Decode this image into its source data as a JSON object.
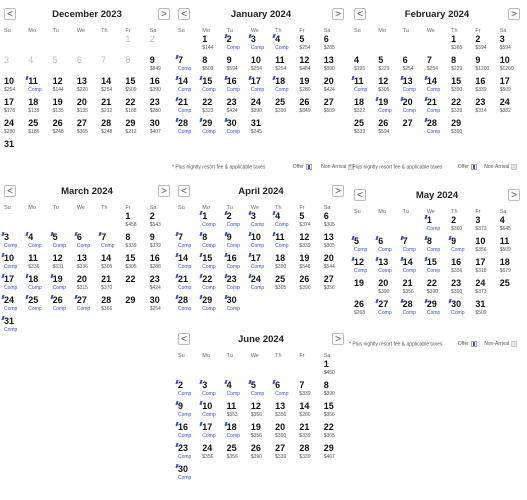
{
  "nav": {
    "prev": "<",
    "next": ">"
  },
  "weekdays": [
    "Su",
    "Mo",
    "Tu",
    "We",
    "Th",
    "Fr",
    "Sa"
  ],
  "legend": {
    "note": "* Plus nightly resort fee & applicable taxes",
    "offer": "Offer",
    "non_arrival": "Non-Arrival"
  },
  "colors": {
    "comp": "#3450d8",
    "disabled": "#bbbbbb"
  },
  "months": [
    {
      "title": "December 2023",
      "offset": 5,
      "days": [
        {
          "n": "1",
          "s": "",
          "dis": true
        },
        {
          "n": "2",
          "s": "",
          "dis": true
        },
        {
          "n": "3",
          "s": "",
          "dis": true
        },
        {
          "n": "4",
          "s": "",
          "dis": true
        },
        {
          "n": "5",
          "s": "",
          "dis": true
        },
        {
          "n": "6",
          "s": "",
          "dis": true
        },
        {
          "n": "7",
          "s": "",
          "dis": true
        },
        {
          "n": "8",
          "s": "",
          "dis": true
        },
        {
          "n": "9",
          "s": "$849"
        },
        {
          "n": "10",
          "s": "$254"
        },
        {
          "n": "11",
          "s": "Comp",
          "c": true
        },
        {
          "n": "12",
          "s": "$144"
        },
        {
          "n": "13",
          "s": "$220"
        },
        {
          "n": "14",
          "s": "$254"
        },
        {
          "n": "15",
          "s": "$509"
        },
        {
          "n": "16",
          "s": "$390"
        },
        {
          "n": "17",
          "s": "$178"
        },
        {
          "n": "18",
          "s": "$135"
        },
        {
          "n": "19",
          "s": "$135"
        },
        {
          "n": "20",
          "s": "$135"
        },
        {
          "n": "21",
          "s": "$212"
        },
        {
          "n": "22",
          "s": "$188"
        },
        {
          "n": "23",
          "s": "$280"
        },
        {
          "n": "24",
          "s": "$280"
        },
        {
          "n": "25",
          "s": "$186"
        },
        {
          "n": "26",
          "s": "$248"
        },
        {
          "n": "27",
          "s": "$365"
        },
        {
          "n": "28",
          "s": "$248"
        },
        {
          "n": "29",
          "s": "$212"
        },
        {
          "n": "30",
          "s": "$407"
        },
        {
          "n": "31",
          "s": ""
        }
      ]
    },
    {
      "title": "January 2024",
      "offset": 1,
      "days": [
        {
          "n": "1",
          "s": "$144"
        },
        {
          "n": "2",
          "s": "Comp",
          "c": true
        },
        {
          "n": "3",
          "s": "Comp",
          "c": true
        },
        {
          "n": "4",
          "s": "Comp",
          "c": true
        },
        {
          "n": "5",
          "s": "$254"
        },
        {
          "n": "6",
          "s": "$285"
        },
        {
          "n": "7",
          "s": "Comp",
          "c": true
        },
        {
          "n": "8",
          "s": "$509"
        },
        {
          "n": "9",
          "s": "$594"
        },
        {
          "n": "10",
          "s": "$254"
        },
        {
          "n": "11",
          "s": "$254"
        },
        {
          "n": "12",
          "s": "$484"
        },
        {
          "n": "13",
          "s": "$390"
        },
        {
          "n": "14",
          "s": "Comp",
          "c": true
        },
        {
          "n": "15",
          "s": "Comp",
          "c": true
        },
        {
          "n": "16",
          "s": "Comp",
          "c": true
        },
        {
          "n": "17",
          "s": "Comp",
          "c": true
        },
        {
          "n": "18",
          "s": "Comp",
          "c": true
        },
        {
          "n": "19",
          "s": "$280"
        },
        {
          "n": "20",
          "s": "$424"
        },
        {
          "n": "21",
          "s": "Comp",
          "c": true
        },
        {
          "n": "22",
          "s": "$323"
        },
        {
          "n": "23",
          "s": "$424"
        },
        {
          "n": "24",
          "s": "$390"
        },
        {
          "n": "25",
          "s": "$390"
        },
        {
          "n": "26",
          "s": "$849"
        },
        {
          "n": "27",
          "s": "$509"
        },
        {
          "n": "28",
          "s": "Comp",
          "c": true
        },
        {
          "n": "29",
          "s": "Comp",
          "c": true
        },
        {
          "n": "30",
          "s": "Comp",
          "c": true
        },
        {
          "n": "31",
          "s": "$245"
        }
      ]
    },
    {
      "title": "February 2024",
      "offset": 4,
      "days": [
        {
          "n": "1",
          "s": "$365"
        },
        {
          "n": "2",
          "s": "$594"
        },
        {
          "n": "3",
          "s": "$594"
        },
        {
          "n": "4",
          "s": "$195"
        },
        {
          "n": "5",
          "s": "$229"
        },
        {
          "n": "6",
          "s": "$254"
        },
        {
          "n": "7",
          "s": "$254"
        },
        {
          "n": "8",
          "s": "$229"
        },
        {
          "n": "9",
          "s": "$1200"
        },
        {
          "n": "10",
          "s": "$1200"
        },
        {
          "n": "11",
          "s": "Comp",
          "c": true
        },
        {
          "n": "12",
          "s": "$305"
        },
        {
          "n": "13",
          "s": "Comp",
          "c": true
        },
        {
          "n": "14",
          "s": "Comp",
          "c": true
        },
        {
          "n": "15",
          "s": "$390"
        },
        {
          "n": "16",
          "s": "$339"
        },
        {
          "n": "17",
          "s": "$509"
        },
        {
          "n": "18",
          "s": "$322"
        },
        {
          "n": "19",
          "s": "Comp",
          "c": true
        },
        {
          "n": "20",
          "s": "Comp",
          "c": true
        },
        {
          "n": "21",
          "s": "Comp",
          "c": true
        },
        {
          "n": "22",
          "s": "$339"
        },
        {
          "n": "23",
          "s": "$314"
        },
        {
          "n": "24",
          "s": "$382"
        },
        {
          "n": "25",
          "s": "$339"
        },
        {
          "n": "26",
          "s": "$594"
        },
        {
          "n": "27",
          "s": ""
        },
        {
          "n": "28",
          "s": "Comp",
          "c": true
        },
        {
          "n": "29",
          "s": "$390"
        }
      ]
    },
    {
      "title": "March 2024",
      "offset": 5,
      "days": [
        {
          "n": "1",
          "s": "$458"
        },
        {
          "n": "2",
          "s": "$543"
        },
        {
          "n": "3",
          "s": "Comp",
          "c": true
        },
        {
          "n": "4",
          "s": "Comp",
          "c": true
        },
        {
          "n": "5",
          "s": "Comp",
          "c": true
        },
        {
          "n": "6",
          "s": "Comp",
          "c": true
        },
        {
          "n": "7",
          "s": "Comp",
          "c": true
        },
        {
          "n": "8",
          "s": "$339"
        },
        {
          "n": "9",
          "s": "$339"
        },
        {
          "n": "10",
          "s": "Comp",
          "c": true
        },
        {
          "n": "11",
          "s": "$336"
        },
        {
          "n": "12",
          "s": "$331"
        },
        {
          "n": "13",
          "s": "$336"
        },
        {
          "n": "14",
          "s": "$305"
        },
        {
          "n": "15",
          "s": "$305"
        },
        {
          "n": "16",
          "s": "$288"
        },
        {
          "n": "17",
          "s": "Comp",
          "c": true
        },
        {
          "n": "18",
          "s": "Comp",
          "c": true
        },
        {
          "n": "19",
          "s": "Comp",
          "c": true
        },
        {
          "n": "20",
          "s": "$315"
        },
        {
          "n": "21",
          "s": "$370"
        },
        {
          "n": "22",
          "s": ""
        },
        {
          "n": "23",
          "s": "$424"
        },
        {
          "n": "24",
          "s": "Comp",
          "c": true
        },
        {
          "n": "25",
          "s": "Comp",
          "c": true
        },
        {
          "n": "26",
          "s": "Comp",
          "c": true
        },
        {
          "n": "27",
          "s": "Comp",
          "c": true
        },
        {
          "n": "28",
          "s": "$366"
        },
        {
          "n": "29",
          "s": ""
        },
        {
          "n": "30",
          "s": "$254"
        },
        {
          "n": "31",
          "s": "Comp",
          "c": true
        }
      ]
    },
    {
      "title": "April 2024",
      "offset": 1,
      "days": [
        {
          "n": "1",
          "s": "Comp",
          "c": true
        },
        {
          "n": "2",
          "s": "Comp",
          "c": true
        },
        {
          "n": "3",
          "s": "Comp",
          "c": true
        },
        {
          "n": "4",
          "s": "Comp",
          "c": true
        },
        {
          "n": "5",
          "s": "$374"
        },
        {
          "n": "6",
          "s": "$305"
        },
        {
          "n": "7",
          "s": "Comp",
          "c": true
        },
        {
          "n": "8",
          "s": "Comp",
          "c": true
        },
        {
          "n": "9",
          "s": "Comp",
          "c": true
        },
        {
          "n": "10",
          "s": "Comp",
          "c": true
        },
        {
          "n": "11",
          "s": "Comp",
          "c": true
        },
        {
          "n": "12",
          "s": "$339"
        },
        {
          "n": "13",
          "s": "$305"
        },
        {
          "n": "14",
          "s": "Comp",
          "c": true
        },
        {
          "n": "15",
          "s": "Comp",
          "c": true
        },
        {
          "n": "16",
          "s": "Comp",
          "c": true
        },
        {
          "n": "17",
          "s": "Comp",
          "c": true
        },
        {
          "n": "18",
          "s": "$390"
        },
        {
          "n": "19",
          "s": "$548"
        },
        {
          "n": "20",
          "s": "$544"
        },
        {
          "n": "21",
          "s": "Comp",
          "c": true
        },
        {
          "n": "22",
          "s": "Comp",
          "c": true
        },
        {
          "n": "23",
          "s": "Comp",
          "c": true
        },
        {
          "n": "24",
          "s": "Comp",
          "c": true
        },
        {
          "n": "25",
          "s": "$305"
        },
        {
          "n": "26",
          "s": "$390"
        },
        {
          "n": "27",
          "s": "$356"
        },
        {
          "n": "28",
          "s": "Comp",
          "c": true
        },
        {
          "n": "29",
          "s": "Comp",
          "c": true
        },
        {
          "n": "30",
          "s": "Comp",
          "c": true
        }
      ]
    },
    {
      "title": "May 2024",
      "offset": 3,
      "days": [
        {
          "n": "1",
          "s": "Comp",
          "c": true
        },
        {
          "n": "2",
          "s": "$360"
        },
        {
          "n": "3",
          "s": "$373"
        },
        {
          "n": "4",
          "s": "$645"
        },
        {
          "n": "5",
          "s": "Comp",
          "c": true
        },
        {
          "n": "6",
          "s": "Comp",
          "c": true
        },
        {
          "n": "7",
          "s": "Comp",
          "c": true
        },
        {
          "n": "8",
          "s": "Comp",
          "c": true
        },
        {
          "n": "9",
          "s": "Comp",
          "c": true
        },
        {
          "n": "10",
          "s": "$356"
        },
        {
          "n": "11",
          "s": "$509"
        },
        {
          "n": "12",
          "s": "Comp",
          "c": true
        },
        {
          "n": "13",
          "s": "Comp",
          "c": true
        },
        {
          "n": "14",
          "s": "Comp",
          "c": true
        },
        {
          "n": "15",
          "s": "Comp",
          "c": true
        },
        {
          "n": "16",
          "s": "$356"
        },
        {
          "n": "17",
          "s": "$318"
        },
        {
          "n": "18",
          "s": "$679"
        },
        {
          "n": "19",
          "s": ""
        },
        {
          "n": "20",
          "s": "$390"
        },
        {
          "n": "21",
          "s": "$356"
        },
        {
          "n": "22",
          "s": "$390"
        },
        {
          "n": "23",
          "s": "$390"
        },
        {
          "n": "24",
          "s": "$373"
        },
        {
          "n": "25",
          "s": ""
        },
        {
          "n": "26",
          "s": "$268"
        },
        {
          "n": "27",
          "s": "Comp",
          "c": true
        },
        {
          "n": "28",
          "s": "Comp",
          "c": true
        },
        {
          "n": "29",
          "s": "Comp",
          "c": true
        },
        {
          "n": "30",
          "s": "Comp",
          "c": true
        },
        {
          "n": "31",
          "s": "$509"
        }
      ]
    },
    {
      "title": "June 2024",
      "offset": 6,
      "days": [
        {
          "n": "1",
          "s": "$450"
        },
        {
          "n": "2",
          "s": "Comp",
          "c": true
        },
        {
          "n": "3",
          "s": "Comp",
          "c": true
        },
        {
          "n": "4",
          "s": "Comp",
          "c": true
        },
        {
          "n": "5",
          "s": "Comp",
          "c": true
        },
        {
          "n": "6",
          "s": "Comp",
          "c": true
        },
        {
          "n": "7",
          "s": "$339"
        },
        {
          "n": "8",
          "s": "$390"
        },
        {
          "n": "9",
          "s": "Comp",
          "c": true
        },
        {
          "n": "10",
          "s": "Comp",
          "c": true
        },
        {
          "n": "11",
          "s": "$353"
        },
        {
          "n": "12",
          "s": "$356"
        },
        {
          "n": "13",
          "s": "$356"
        },
        {
          "n": "14",
          "s": "$280"
        },
        {
          "n": "15",
          "s": "$356"
        },
        {
          "n": "16",
          "s": "Comp",
          "c": true
        },
        {
          "n": "17",
          "s": "Comp",
          "c": true
        },
        {
          "n": "18",
          "s": "Comp",
          "c": true
        },
        {
          "n": "19",
          "s": "$356"
        },
        {
          "n": "20",
          "s": "$390"
        },
        {
          "n": "21",
          "s": "$339"
        },
        {
          "n": "22",
          "s": "$365"
        },
        {
          "n": "23",
          "s": "Comp",
          "c": true
        },
        {
          "n": "24",
          "s": "$356"
        },
        {
          "n": "25",
          "s": "$356"
        },
        {
          "n": "26",
          "s": "$390"
        },
        {
          "n": "27",
          "s": "$339"
        },
        {
          "n": "28",
          "s": "$339"
        },
        {
          "n": "29",
          "s": "$467"
        },
        {
          "n": "30",
          "s": "Comp",
          "c": true
        }
      ]
    }
  ]
}
